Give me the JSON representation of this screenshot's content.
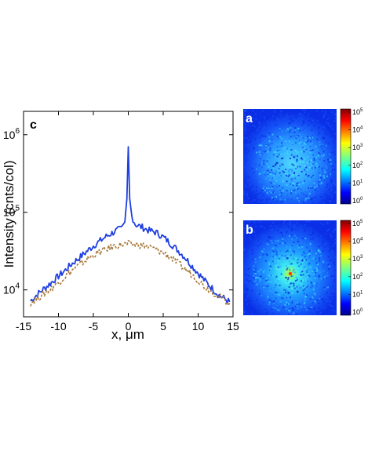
{
  "chart_data": [
    {
      "type": "line",
      "panel": "c",
      "xlabel": "x, μm",
      "ylabel": "Intensity (cnts/col)",
      "xlim": [
        -15,
        15
      ],
      "ylim": [
        4500,
        2000000
      ],
      "yscale": "log",
      "xticks": [
        "-15",
        "-10",
        "-5",
        "0",
        "5",
        "10",
        "15"
      ],
      "xtick_values": [
        -15,
        -10,
        -5,
        0,
        5,
        10,
        15
      ],
      "yticks": [
        {
          "value": 10000,
          "base": "10",
          "exp": "4"
        },
        {
          "value": 100000,
          "base": "10",
          "exp": "5"
        },
        {
          "value": 1000000,
          "base": "10",
          "exp": "6"
        }
      ],
      "series": [
        {
          "color": "#1f3fe0",
          "style": "solid",
          "x": [
            -14,
            -13,
            -12,
            -11,
            -10,
            -9,
            -8,
            -7,
            -6,
            -5,
            -4,
            -3,
            -2,
            -1,
            -0.5,
            -0.2,
            0,
            0.2,
            0.5,
            1,
            2,
            3,
            4,
            5,
            6,
            7,
            8,
            9,
            10,
            11,
            12,
            13,
            14,
            14.5
          ],
          "y": [
            7200,
            8800,
            10500,
            12500,
            15000,
            18000,
            22000,
            26000,
            31000,
            37000,
            43000,
            50000,
            56000,
            62000,
            75000,
            150000,
            700000,
            150000,
            90000,
            70000,
            64000,
            58000,
            55000,
            48000,
            40000,
            33000,
            27000,
            21000,
            16500,
            13000,
            10500,
            8500,
            7500,
            7000
          ]
        },
        {
          "color": "#a87a3c",
          "style": "dashed",
          "x": [
            -14,
            -13,
            -12,
            -11,
            -10,
            -9,
            -8,
            -7,
            -6,
            -5,
            -4,
            -3,
            -2,
            -1,
            0,
            1,
            2,
            3,
            4,
            5,
            6,
            7,
            8,
            9,
            10,
            11,
            12,
            13,
            14,
            14.5
          ],
          "y": [
            6800,
            7800,
            9000,
            10500,
            12500,
            15000,
            18000,
            21000,
            24500,
            28000,
            31000,
            34000,
            36500,
            38000,
            39000,
            38500,
            37500,
            35500,
            33000,
            30000,
            26500,
            22500,
            19000,
            16000,
            13500,
            11000,
            9500,
            8200,
            7200,
            6800
          ]
        }
      ]
    },
    {
      "type": "heatmap",
      "panel": "a",
      "colorbar": {
        "scale": "log",
        "ticks": [
          {
            "base": "10",
            "exp": "5"
          },
          {
            "base": "10",
            "exp": "4"
          },
          {
            "base": "10",
            "exp": "3"
          },
          {
            "base": "10",
            "exp": "2"
          },
          {
            "base": "10",
            "exp": "1"
          },
          {
            "base": "10",
            "exp": "0"
          }
        ]
      }
    },
    {
      "type": "heatmap",
      "panel": "b",
      "colorbar": {
        "scale": "log",
        "ticks": [
          {
            "base": "10",
            "exp": "5"
          },
          {
            "base": "10",
            "exp": "4"
          },
          {
            "base": "10",
            "exp": "3"
          },
          {
            "base": "10",
            "exp": "2"
          },
          {
            "base": "10",
            "exp": "1"
          },
          {
            "base": "10",
            "exp": "0"
          }
        ]
      }
    }
  ]
}
